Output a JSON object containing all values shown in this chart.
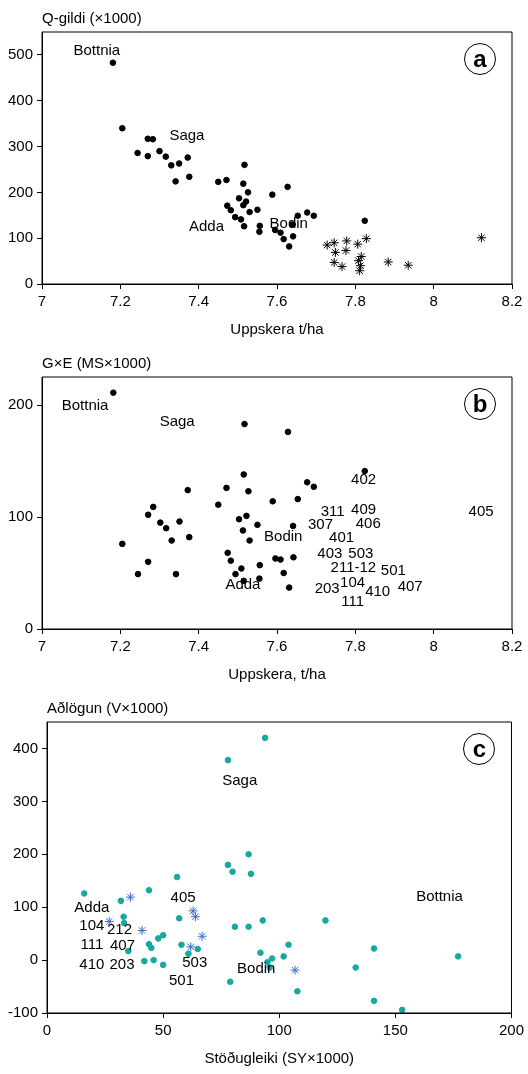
{
  "chart_data": [
    {
      "type": "scatter",
      "ylabel": "Q-gildi (×1000)",
      "xlabel": "Uppskera t/ha",
      "xlim": [
        7,
        8.2
      ],
      "xticks": [
        7,
        7.2,
        7.4,
        7.6,
        7.8,
        8,
        8.2
      ],
      "ylim": [
        0,
        550
      ],
      "yticks": [
        0,
        100,
        200,
        300,
        400,
        500
      ],
      "grid": false,
      "legend": false,
      "series": [
        {
          "color": "#000000",
          "marker": "circle",
          "x": [
            7.181,
            7.205,
            7.244,
            7.27,
            7.27,
            7.283,
            7.3,
            7.316,
            7.33,
            7.341,
            7.35,
            7.372,
            7.376,
            7.45,
            7.471,
            7.473,
            7.482,
            7.493,
            7.503,
            7.508,
            7.514,
            7.514,
            7.517,
            7.521,
            7.526,
            7.516,
            7.53,
            7.55,
            7.556,
            7.555,
            7.588,
            7.595,
            7.609,
            7.617,
            7.627,
            7.631,
            7.64,
            7.641,
            7.653,
            7.677,
            7.694,
            7.824
          ],
          "values": [
            483,
            340,
            286,
            279,
            317,
            316,
            290,
            278,
            259,
            224,
            263,
            276,
            234,
            223,
            227,
            171,
            161,
            146,
            187,
            141,
            172,
            219,
            260,
            180,
            200,
            126,
            157,
            162,
            127,
            114,
            195,
            118,
            112,
            98,
            212,
            82,
            130,
            104,
            149,
            156,
            149,
            138
          ]
        },
        {
          "color": "#000000",
          "marker": "cross",
          "x": [
            7.728,
            7.746,
            7.749,
            7.746,
            7.766,
            7.778,
            7.776,
            7.806,
            7.828,
            7.815,
            7.808,
            7.813,
            7.811,
            7.884,
            7.935,
            8.122
          ],
          "values": [
            85,
            90,
            69,
            47,
            38,
            94,
            73,
            87,
            99,
            60,
            51,
            40,
            29,
            48,
            41,
            101
          ]
        }
      ],
      "annotations": [
        "a",
        "Bottnia",
        "Saga",
        "Adda",
        "Bodin"
      ]
    },
    {
      "type": "scatter",
      "ylabel": "G×E (MS×1000)",
      "xlabel": "Uppskera, t/ha",
      "xlim": [
        7,
        8.2
      ],
      "xticks": [
        7,
        7.2,
        7.4,
        7.6,
        7.8,
        8,
        8.2
      ],
      "ylim": [
        0,
        225
      ],
      "yticks": [
        0,
        100,
        200
      ],
      "grid": false,
      "legend": false,
      "series": [
        {
          "color": "#000000",
          "marker": "circle",
          "x": [
            7.182,
            7.205,
            7.245,
            7.271,
            7.271,
            7.284,
            7.302,
            7.317,
            7.331,
            7.342,
            7.351,
            7.376,
            7.372,
            7.45,
            7.471,
            7.474,
            7.482,
            7.494,
            7.503,
            7.509,
            7.513,
            7.515,
            7.515,
            7.517,
            7.522,
            7.527,
            7.53,
            7.55,
            7.556,
            7.555,
            7.589,
            7.596,
            7.609,
            7.617,
            7.628,
            7.631,
            7.641,
            7.642,
            7.653,
            7.677,
            7.694,
            7.824
          ],
          "values": [
            211,
            76,
            49,
            60,
            102,
            109,
            95,
            90,
            79,
            49,
            96,
            82,
            124,
            111,
            126,
            68,
            61,
            49,
            98,
            54,
            88,
            138,
            43,
            183,
            101,
            123,
            79,
            93,
            57,
            45,
            114,
            63,
            62,
            50,
            176,
            37,
            92,
            64,
            116,
            131,
            127,
            141
          ]
        }
      ],
      "annotations": [
        "b",
        "Bottnia",
        "Saga",
        "Bodin",
        "Adda",
        "402",
        "311",
        "409",
        "405",
        "307",
        "406",
        "401",
        "403",
        "503",
        "211-12",
        "501",
        "203",
        "104",
        "410",
        "407",
        "111"
      ]
    },
    {
      "type": "scatter",
      "ylabel": "Aðlögun (V×1000)",
      "xlabel": "Stöðugleiki (SY×1000)",
      "xlim": [
        0,
        200
      ],
      "xticks": [
        0,
        50,
        100,
        150,
        200
      ],
      "ylim": [
        -100,
        450
      ],
      "yticks": [
        -100,
        0,
        100,
        200,
        300,
        400
      ],
      "grid": false,
      "legend": false,
      "series": [
        {
          "color": "#17a8a0",
          "marker": "circle",
          "x": [
            16,
            31.8,
            33,
            33.2,
            35,
            43.9,
            43.9,
            44.9,
            41.9,
            45.9,
            47.9,
            50,
            50,
            56,
            56.9,
            57.9,
            60.9,
            64.9,
            77.9,
            77.9,
            79.9,
            78.9,
            80.9,
            86.8,
            87.8,
            86.8,
            93.9,
            92.9,
            91.9,
            94.9,
            96.9,
            95.9,
            101.9,
            104,
            107.8,
            119.9,
            132.9,
            140.8,
            140.8,
            152.9,
            177
          ],
          "values": [
            126,
            112,
            82,
            70,
            17,
            132,
            30,
            23,
            -2,
            0,
            41,
            47,
            -9,
            157,
            79,
            29,
            12,
            21,
            378,
            180,
            167,
            -41,
            63,
            200,
            163,
            63,
            420,
            75,
            14,
            -4,
            3,
            -14,
            7,
            29,
            -59,
            75,
            -14,
            22,
            -77,
            -94,
            7
          ]
        },
        {
          "color": "#3a6fc8",
          "marker": "cross",
          "x": [
            35.9,
            26.8,
            40.9,
            62.9,
            63.9,
            66.8,
            61.9,
            106.8
          ],
          "values": [
            119,
            73,
            56,
            93,
            82,
            45,
            25,
            -19
          ]
        }
      ],
      "annotations": [
        "c",
        "Saga",
        "Bottnia",
        "Adda",
        "104",
        "212",
        "111",
        "407",
        "410",
        "203",
        "405",
        "503",
        "501",
        "Bodin"
      ]
    }
  ]
}
